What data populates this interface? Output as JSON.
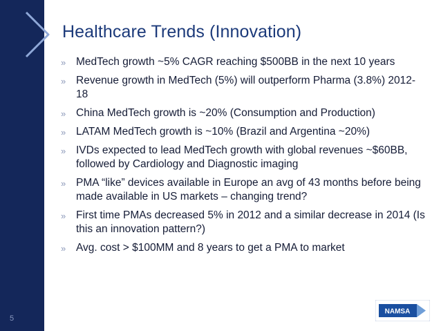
{
  "slide": {
    "title": "Healthcare Trends (Innovation)",
    "page_number": "5",
    "bullet_marker": "»",
    "bullets": [
      "MedTech growth ~5% CAGR reaching $500BB in the next 10 years",
      "Revenue growth in MedTech (5%) will outperform Pharma (3.8%) 2012-18",
      "China MedTech growth is ~20% (Consumption and Production)",
      "LATAM MedTech growth is ~10% (Brazil and Argentina ~20%)",
      "IVDs expected to lead MedTech growth with global revenues ~$60BB, followed by Cardiology and Diagnostic imaging",
      "PMA “like” devices available in Europe an avg of 43 months before being made available in US markets – changing trend?",
      "First time PMAs decreased 5% in 2012 and a similar decrease in 2014 (Is this an innovation pattern?)",
      "Avg. cost > $100MM and 8 years to get a PMA to market"
    ],
    "logo_text": "NAMSA"
  },
  "colors": {
    "band": "#14275a",
    "title": "#1c3a7a",
    "logo_blue": "#1a4fa0"
  }
}
